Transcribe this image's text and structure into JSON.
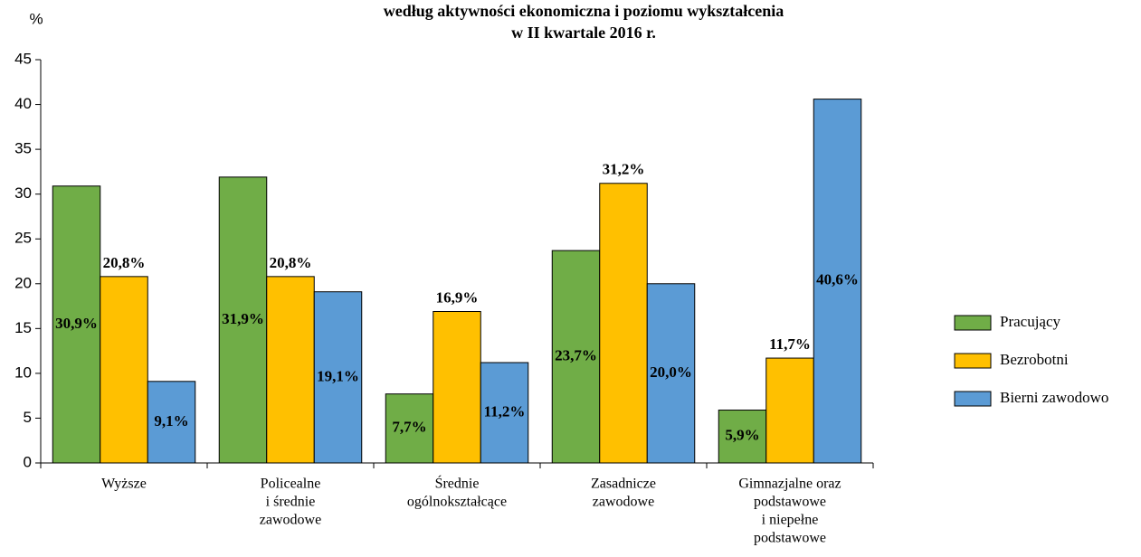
{
  "chart_data": {
    "type": "bar",
    "title": [
      "według aktywności ekonomiczna i poziomu wykształcenia",
      "w II kwartale 2016 r."
    ],
    "y_label": "%",
    "categories": [
      [
        "Wyższe"
      ],
      [
        "Policealne",
        "i średnie",
        "zawodowe"
      ],
      [
        "Średnie",
        "ogólnokształcące"
      ],
      [
        "Zasadnicze",
        "zawodowe"
      ],
      [
        "Gimnazjalne oraz",
        "podstawowe",
        "i niepełne",
        "podstawowe"
      ]
    ],
    "series": [
      {
        "name": "Pracujący",
        "color": "#70ad47",
        "values": [
          30.9,
          31.9,
          7.7,
          23.7,
          5.9
        ],
        "value_labels": [
          "30,9%",
          "31,9%",
          "7,7%",
          "23,7%",
          "5,9%"
        ],
        "label_position": "center"
      },
      {
        "name": "Bezrobotni",
        "color": "#ffc000",
        "values": [
          20.8,
          20.8,
          16.9,
          31.2,
          11.7
        ],
        "value_labels": [
          "20,8%",
          "20,8%",
          "16,9%",
          "31,2%",
          "11,7%"
        ],
        "label_position": "above"
      },
      {
        "name": "Bierni zawodowo",
        "color": "#5b9bd5",
        "values": [
          9.1,
          19.1,
          11.2,
          20.0,
          40.6
        ],
        "value_labels": [
          "9,1%",
          "19,1%",
          "11,2%",
          "20,0%",
          "40,6%"
        ],
        "label_position": "center"
      }
    ],
    "ylim": [
      0,
      45
    ],
    "yticks": [
      0,
      5,
      10,
      15,
      20,
      25,
      30,
      35,
      40,
      45
    ],
    "grid": false,
    "legend": "right"
  }
}
